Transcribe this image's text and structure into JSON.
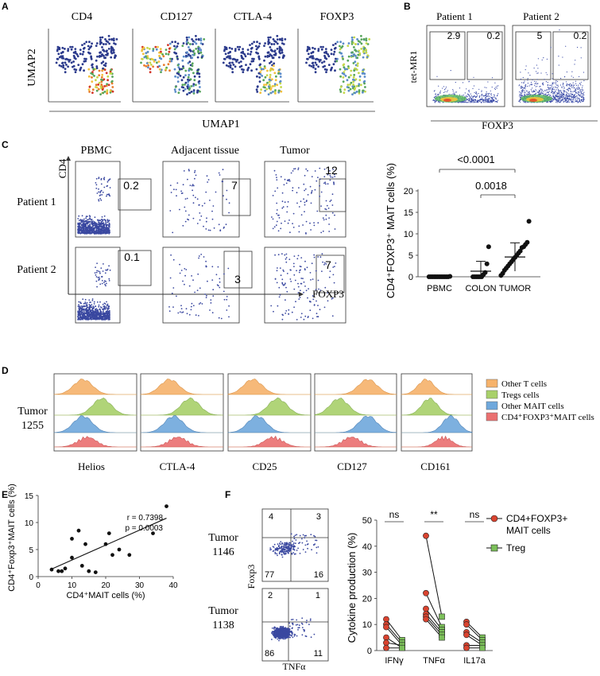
{
  "panel_labels": [
    "A",
    "B",
    "C",
    "D",
    "E",
    "F"
  ],
  "A": {
    "markers": [
      "CD4",
      "CD127",
      "CTLA-4",
      "FOXP3"
    ],
    "ylabel": "UMAP2",
    "xlabel": "UMAP1"
  },
  "B": {
    "patients": [
      "Patient 1",
      "Patient 2"
    ],
    "gate_values": [
      [
        "2.9",
        "0.2"
      ],
      [
        "5",
        "0.2"
      ]
    ],
    "ylabel": "tet-MR1",
    "xlabel": "FOXP3"
  },
  "C": {
    "columns": [
      "PBMC",
      "Adjacent tissue",
      "Tumor"
    ],
    "rows": [
      "Patient 1",
      "Patient 2"
    ],
    "gate_values": [
      [
        "0.2",
        "7",
        "12"
      ],
      [
        "0.1",
        "3",
        "7"
      ]
    ],
    "ylabel": "CD4",
    "xlabel": "FOXP3",
    "scatter": {
      "ylabel": "CD4⁺FOXP3⁺ MAIT cells (%)",
      "p1": "<0.0001",
      "p2": "0.0018"
    }
  },
  "D": {
    "sample_line1": "Tumor",
    "sample_line2": "1255",
    "markers": [
      "Helios",
      "CTLA-4",
      "CD25",
      "CD127",
      "CD161"
    ],
    "legend": [
      {
        "label": "Other T cells",
        "color": "#f6b26b"
      },
      {
        "label": "Tregs cells",
        "color": "#a8d06a"
      },
      {
        "label": "Other MAIT cells",
        "color": "#6fa8dc"
      },
      {
        "label": "CD4⁺FOXP3⁺MAIT cells",
        "color": "#ea7070"
      }
    ]
  },
  "E": {
    "r_text": "r = 0.7398",
    "p_text": "p = 0.0003"
  },
  "F": {
    "tumors": [
      {
        "line1": "Tumor",
        "line2": "1146",
        "q": [
          "4",
          "3",
          "77",
          "16"
        ]
      },
      {
        "line1": "Tumor",
        "line2": "1138",
        "q": [
          "2",
          "1",
          "86",
          "11"
        ]
      }
    ],
    "flow_ylabel": "Foxp3",
    "flow_xlabel": "TNFα",
    "sig": [
      "ns",
      "**",
      "ns"
    ],
    "legend": [
      {
        "label_line1": "CD4+FOXP3+",
        "label_line2": "MAIT cells",
        "color": "#d9432f"
      },
      {
        "label_line1": "Treg",
        "label_line2": "",
        "color": "#7cc05a"
      }
    ]
  },
  "chart_data": [
    {
      "id": "C-scatter",
      "type": "scatter",
      "title": "",
      "ylabel": "CD4⁺FOXP3⁺ MAIT cells (%)",
      "xlabel": "",
      "categories": [
        "PBMC",
        "COLON",
        "TUMOR"
      ],
      "ylim": [
        0,
        20
      ],
      "yticks": [
        "0",
        "5",
        "10",
        "15",
        "20"
      ],
      "series": [
        {
          "name": "PBMC",
          "values": [
            0,
            0,
            0,
            0,
            0,
            0,
            0,
            0,
            0,
            0,
            0,
            0,
            0.1
          ]
        },
        {
          "name": "COLON",
          "values": [
            0,
            0,
            0,
            0,
            0,
            0,
            0.5,
            1,
            3,
            7
          ]
        },
        {
          "name": "TUMOR",
          "values": [
            0.3,
            0.8,
            1.5,
            2,
            2.5,
            3,
            3.5,
            4,
            4.5,
            5,
            5.5,
            6,
            6.8,
            7,
            7.5,
            8,
            12.9
          ]
        }
      ],
      "means": [
        0.05,
        1.3,
        4.6
      ],
      "sd": [
        0.1,
        2.3,
        3.3
      ],
      "annotations": [
        "<0.0001",
        "0.0018"
      ]
    },
    {
      "id": "E-correlation",
      "type": "scatter",
      "xlabel": "CD4⁺MAIT cells (%)",
      "ylabel": "CD4⁺Foxp3⁺MAIT cells (%)",
      "xlim": [
        0,
        40
      ],
      "ylim": [
        0,
        15
      ],
      "xticks": [
        "0",
        "10",
        "20",
        "30",
        "40"
      ],
      "yticks": [
        "0",
        "5",
        "10",
        "15"
      ],
      "x": [
        4,
        6,
        7,
        8,
        10,
        10,
        12,
        13,
        14,
        15,
        17,
        20,
        21,
        22,
        24,
        27,
        34,
        38
      ],
      "y": [
        1.3,
        1,
        1,
        1.5,
        3.5,
        7,
        8.5,
        2,
        6,
        1,
        0.8,
        6,
        8,
        4,
        5,
        4,
        8,
        13
      ],
      "fit": {
        "x1": 4,
        "y1": 1.4,
        "x2": 38,
        "y2": 10.8
      },
      "annotations": [
        "r = 0.7398",
        "p = 0.0003"
      ]
    },
    {
      "id": "F-paired",
      "type": "line",
      "ylabel": "Cytokine production (%)",
      "categories": [
        "IFNγ",
        "TNFα",
        "IL17a"
      ],
      "ylim": [
        0,
        50
      ],
      "yticks": [
        "0",
        "10",
        "20",
        "30",
        "40",
        "50"
      ],
      "series": [
        {
          "name": "CD4+FOXP3+ MAIT cells",
          "values": [
            [
              12,
              10,
              9,
              5,
              3,
              1
            ],
            [
              44,
              22,
              16,
              14,
              13,
              12
            ],
            [
              11,
              10,
              7,
              6,
              2,
              1
            ]
          ]
        },
        {
          "name": "Treg",
          "values": [
            [
              4,
              3,
              2,
              1,
              2,
              1
            ],
            [
              13,
              9,
              8,
              7,
              6,
              5
            ],
            [
              5,
              4,
              3,
              2,
              2,
              1
            ]
          ]
        }
      ],
      "annotations": [
        "ns",
        "**",
        "ns"
      ]
    }
  ]
}
